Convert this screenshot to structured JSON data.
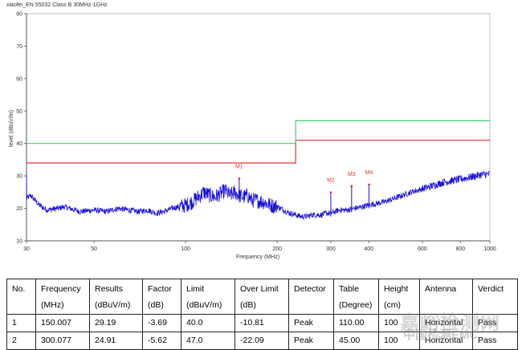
{
  "chart_data": {
    "type": "line",
    "title": "xiaofei_EN 55032 Class B 30MHz-1GHz",
    "xlabel": "Frequency (MHz)",
    "ylabel": "level (dBuV/m)",
    "xscale": "log",
    "xlim": [
      30,
      1000
    ],
    "ylim": [
      10,
      80
    ],
    "x_ticks": [
      30,
      50,
      100,
      200,
      300,
      400,
      600,
      800,
      1000
    ],
    "y_ticks": [
      10,
      20,
      30,
      40,
      50,
      60,
      70,
      80
    ],
    "grid": false,
    "colors": {
      "trace": "#1a0fd6",
      "limit": "#e0323c",
      "limit2": "#3ccf6a",
      "marker": "#e0323c"
    },
    "limit_lines": [
      {
        "color": "#e0323c",
        "points": [
          [
            30,
            34
          ],
          [
            230,
            34
          ],
          [
            230,
            41
          ],
          [
            1000,
            41
          ]
        ]
      },
      {
        "color": "#3ccf6a",
        "points": [
          [
            30,
            40
          ],
          [
            230,
            40
          ],
          [
            230,
            47
          ],
          [
            1000,
            47
          ]
        ]
      }
    ],
    "trace": {
      "x": [
        30,
        31,
        33,
        35,
        38,
        40,
        45,
        50,
        55,
        60,
        65,
        70,
        75,
        80,
        85,
        90,
        95,
        100,
        105,
        110,
        115,
        120,
        125,
        130,
        135,
        140,
        145,
        150,
        155,
        160,
        165,
        170,
        180,
        190,
        200,
        210,
        220,
        230,
        240,
        250,
        260,
        270,
        280,
        290,
        300,
        320,
        340,
        360,
        380,
        400,
        450,
        500,
        550,
        600,
        650,
        700,
        750,
        800,
        850,
        900,
        950,
        1000
      ],
      "y": [
        23,
        24,
        21,
        19.5,
        20,
        20.5,
        19,
        19.5,
        19,
        20,
        19.5,
        19,
        19.5,
        18.5,
        19,
        20,
        20.5,
        21,
        22,
        23.5,
        25,
        24,
        23.5,
        24.5,
        25.5,
        24,
        25,
        24,
        23.5,
        24,
        22.5,
        22.5,
        22,
        21,
        20.5,
        19.5,
        18.5,
        18,
        17.5,
        17.5,
        18,
        18,
        18,
        18.5,
        18.5,
        19.5,
        19.5,
        20,
        20.5,
        21,
        22,
        23.5,
        25,
        26,
        27,
        28,
        28.5,
        29,
        29.5,
        30,
        30.5,
        30.5
      ]
    },
    "markers": [
      {
        "label": "M1",
        "x": 150.007,
        "y": 29.19
      },
      {
        "label": "M2",
        "x": 300.077,
        "y": 24.91
      },
      {
        "label": "M3",
        "x": 351.2,
        "y": 26.8
      },
      {
        "label": "M4",
        "x": 400.5,
        "y": 27.3
      }
    ]
  },
  "table": {
    "headers": [
      [
        "No.",
        ""
      ],
      [
        "Frequency",
        "(MHz)"
      ],
      [
        "Results",
        "(dBuV/m)"
      ],
      [
        "Factor",
        "(dB)"
      ],
      [
        "Limit",
        "(dBuV/m)"
      ],
      [
        "Over Limit",
        "(dB)"
      ],
      [
        "Detector",
        ""
      ],
      [
        "Table",
        "(Degree)"
      ],
      [
        "Height",
        "(cm)"
      ],
      [
        "Antenna",
        ""
      ],
      [
        "Verdict",
        ""
      ]
    ],
    "rows": [
      [
        "1",
        "150.007",
        "29.19",
        "-3.69",
        "40.0",
        "-10.81",
        "Peak",
        "110.00",
        "100",
        "Horizontal",
        "Pass"
      ],
      [
        "2",
        "300.077",
        "24.91",
        "-5.62",
        "47.0",
        "-22.09",
        "Peak",
        "45.00",
        "100",
        "Horizontal",
        "Pass"
      ]
    ]
  },
  "watermark": {
    "line1": "嘉峪检测网",
    "line2": "中国检测EMC"
  }
}
